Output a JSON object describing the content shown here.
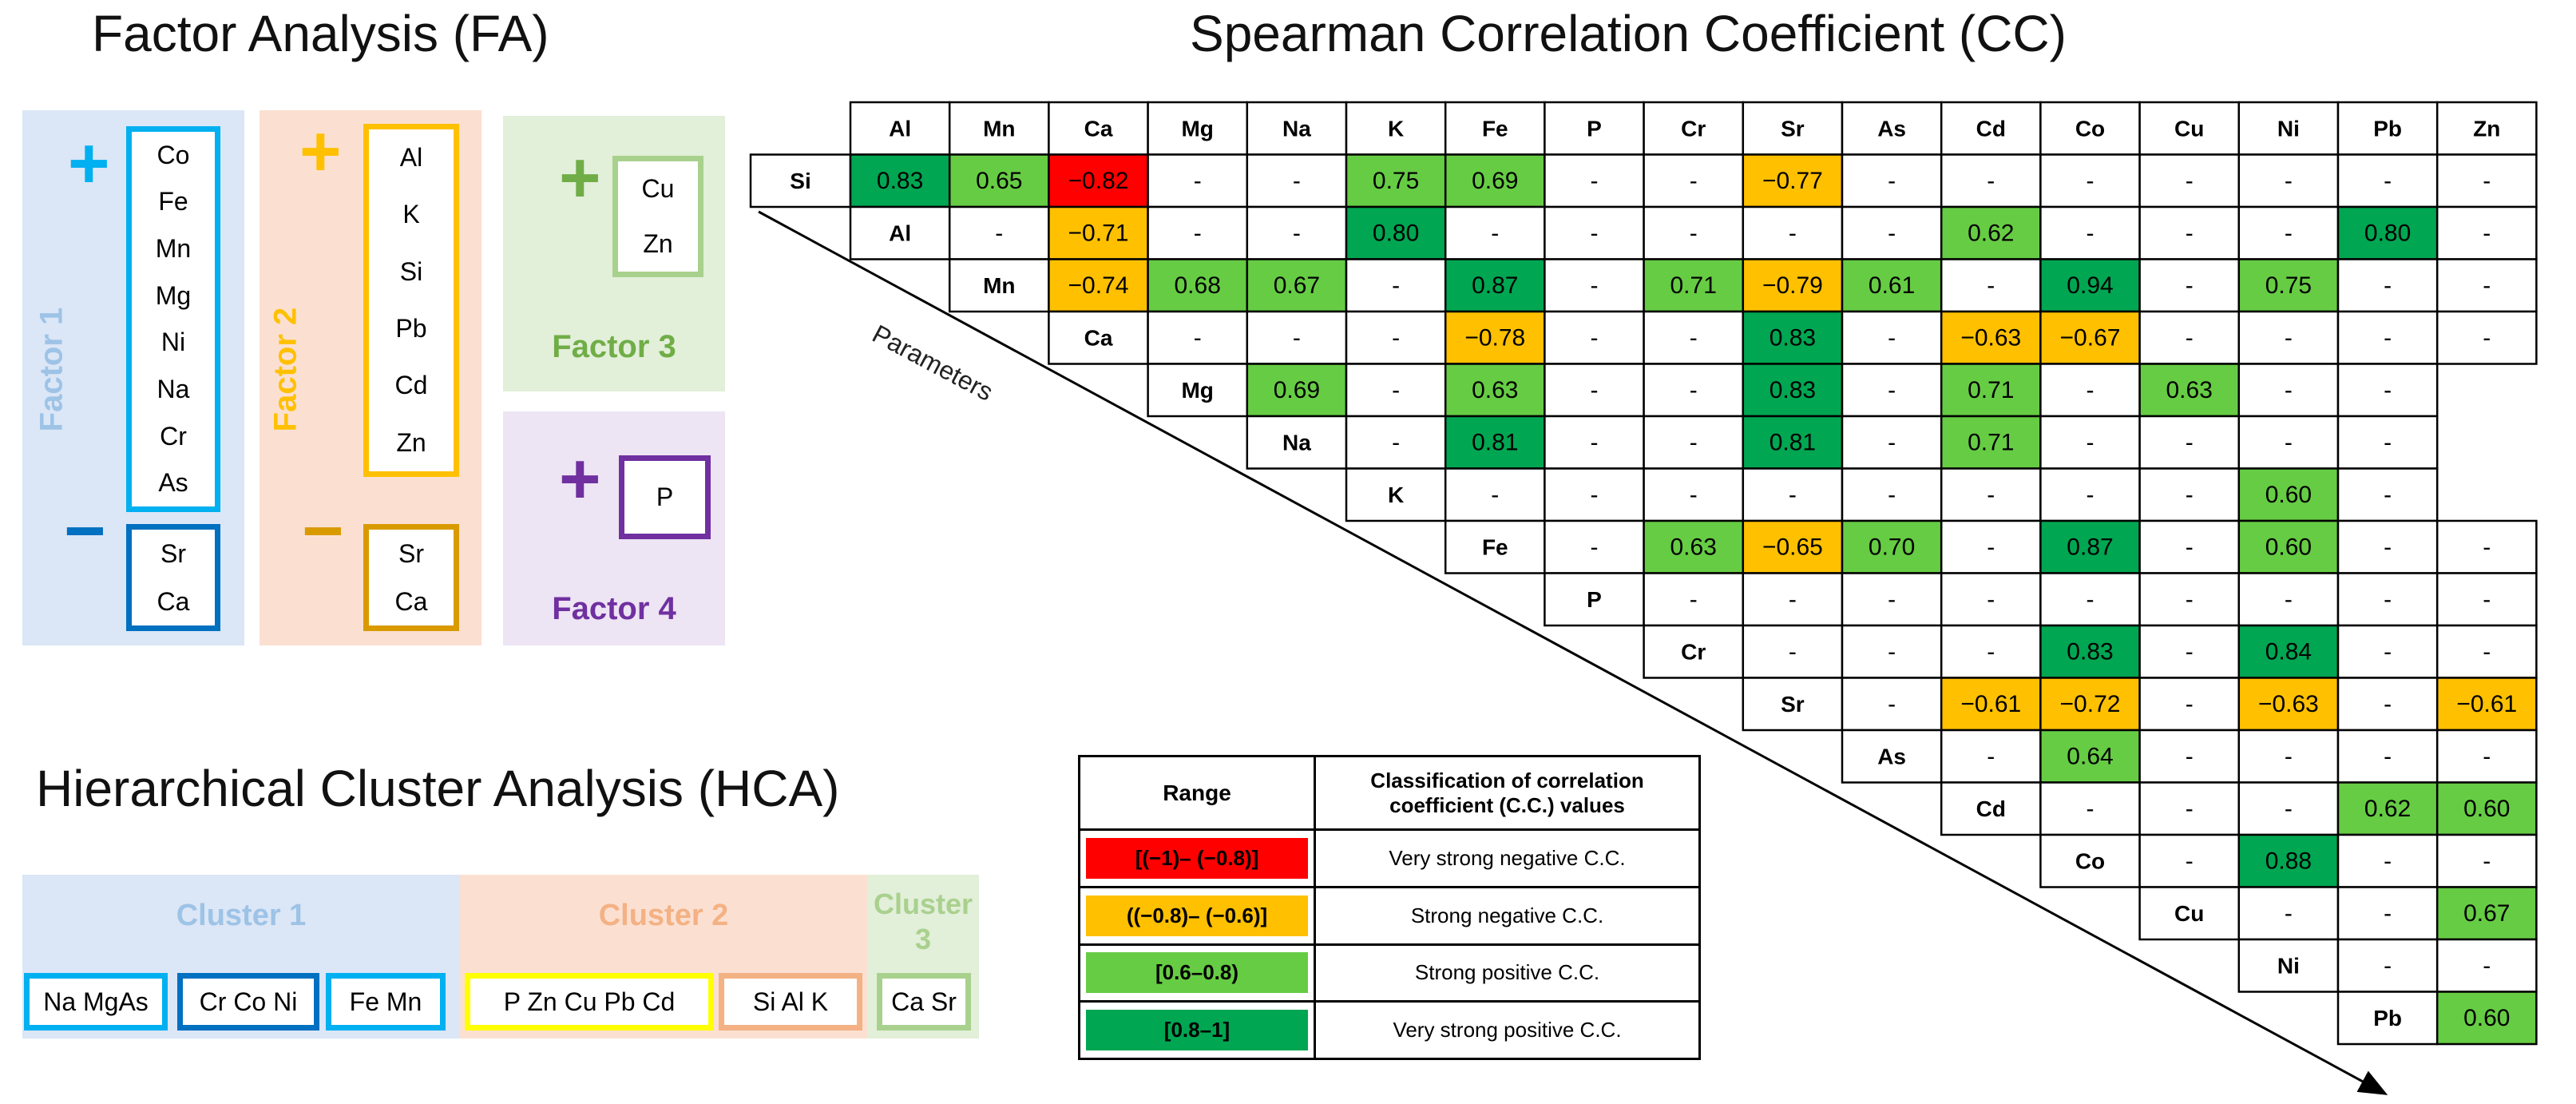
{
  "titles": {
    "fa": "Factor Analysis (FA)",
    "cc": "Spearman Correlation Coefficient  (CC)",
    "hca": "Hierarchical Cluster Analysis (HCA)"
  },
  "colors": {
    "very_strong_negative": "#ff0000",
    "strong_negative": "#ffc000",
    "strong_positive": "#66cc44",
    "very_strong_positive": "#00a651"
  },
  "fa": {
    "factor1": {
      "label": "Factor 1",
      "plus": "+",
      "minus": "−",
      "positive": [
        "Co",
        "Fe",
        "Mn",
        "Mg",
        "Ni",
        "Na",
        "Cr",
        "As"
      ],
      "negative": [
        "Sr",
        "Ca"
      ]
    },
    "factor2": {
      "label": "Factor 2",
      "plus": "+",
      "minus": "−",
      "positive": [
        "Al",
        "K",
        "Si",
        "Pb",
        "Cd",
        "Zn"
      ],
      "negative": [
        "Sr",
        "Ca"
      ]
    },
    "factor3": {
      "label": "Factor 3",
      "plus": "+",
      "positive": [
        "Cu",
        "Zn"
      ]
    },
    "factor4": {
      "label": "Factor 4",
      "plus": "+",
      "positive": [
        "P"
      ]
    }
  },
  "hca": {
    "cluster1": {
      "label": "Cluster 1",
      "groups": [
        "Na MgAs",
        "Cr  Co Ni",
        "Fe Mn"
      ]
    },
    "cluster2": {
      "label": "Cluster 2",
      "groups": [
        "P   Zn  Cu   Pb  Cd",
        "Si   Al   K"
      ]
    },
    "cluster3": {
      "label": "Cluster\n3",
      "groups": [
        "Ca Sr"
      ]
    }
  },
  "cc": {
    "parameters_label": "Parameters",
    "columns": [
      "Al",
      "Mn",
      "Ca",
      "Mg",
      "Na",
      "K",
      "Fe",
      "P",
      "Cr",
      "Sr",
      "As",
      "Cd",
      "Co",
      "Cu",
      "Ni",
      "Pb",
      "Zn"
    ],
    "rows": [
      {
        "label": "Si",
        "values": [
          "0.83",
          "0.65",
          "−0.82",
          "-",
          "-",
          "0.75",
          "0.69",
          "-",
          "-",
          "−0.77",
          "-",
          "-",
          "-",
          "-",
          "-",
          "-",
          "-"
        ]
      },
      {
        "label": "Al",
        "values": [
          "-",
          "−0.71",
          "-",
          "-",
          "0.80",
          "-",
          "-",
          "-",
          "-",
          "-",
          "0.62",
          "-",
          "-",
          "-",
          "0.80",
          "-"
        ]
      },
      {
        "label": "Mn",
        "values": [
          "−0.74",
          "0.68",
          "0.67",
          "-",
          "0.87",
          "-",
          "0.71",
          "−0.79",
          "0.61",
          "-",
          "0.94",
          "-",
          "0.75",
          "-",
          "-"
        ]
      },
      {
        "label": "Ca",
        "values": [
          "-",
          "-",
          "-",
          "−0.78",
          "-",
          "-",
          "0.83",
          "-",
          "−0.63",
          "−0.67",
          "-",
          "-",
          "-",
          "-"
        ]
      },
      {
        "label": "Mg",
        "values": [
          "0.69",
          "-",
          "0.63",
          "-",
          "-",
          "0.83",
          "-",
          "0.71",
          "-",
          "0.63",
          "-",
          "-"
        ]
      },
      {
        "label": "Na",
        "values": [
          "-",
          "0.81",
          "-",
          "-",
          "0.81",
          "-",
          "0.71",
          "-",
          "-",
          "-",
          "-"
        ]
      },
      {
        "label": "K",
        "values": [
          "-",
          "-",
          "-",
          "-",
          "-",
          "-",
          "-",
          "-",
          "0.60",
          "-"
        ]
      },
      {
        "label": "Fe",
        "values": [
          "-",
          "0.63",
          "−0.65",
          "0.70",
          "-",
          "0.87",
          "-",
          "0.60",
          "-",
          "-"
        ]
      },
      {
        "label": "P",
        "values": [
          "-",
          "-",
          "-",
          "-",
          "-",
          "-",
          "-",
          "-",
          "-"
        ]
      },
      {
        "label": "Cr",
        "values": [
          "-",
          "-",
          "-",
          "0.83",
          "-",
          "0.84",
          "-",
          "-"
        ]
      },
      {
        "label": "Sr",
        "values": [
          "-",
          "−0.61",
          "−0.72",
          "-",
          "−0.63",
          "-",
          "−0.61"
        ]
      },
      {
        "label": "As",
        "values": [
          "-",
          "0.64",
          "-",
          "-",
          "-",
          "-"
        ]
      },
      {
        "label": "Cd",
        "values": [
          "-",
          "-",
          "-",
          "0.62",
          "0.60"
        ]
      },
      {
        "label": "Co",
        "values": [
          "-",
          "0.88",
          "-",
          "-"
        ]
      },
      {
        "label": "Cu",
        "values": [
          "-",
          "-",
          "0.67"
        ]
      },
      {
        "label": "Ni",
        "values": [
          "-",
          "-"
        ]
      },
      {
        "label": "Pb",
        "values": [
          "0.60"
        ]
      }
    ]
  },
  "legend": {
    "header_range": "Range",
    "header_class": "Classification of correlation coefficient (C.C.) values",
    "rows": [
      {
        "range": "[(−1)– (−0.8)]",
        "text": "Very strong negative C.C.",
        "color_key": "very_strong_negative"
      },
      {
        "range": "((−0.8)– (−0.6)]",
        "text": "Strong negative C.C.",
        "color_key": "strong_negative"
      },
      {
        "range": "[0.6–0.8)",
        "text": "Strong positive C.C.",
        "color_key": "strong_positive"
      },
      {
        "range": "[0.8–1]",
        "text": "Very strong positive C.C.",
        "color_key": "very_strong_positive"
      }
    ]
  }
}
